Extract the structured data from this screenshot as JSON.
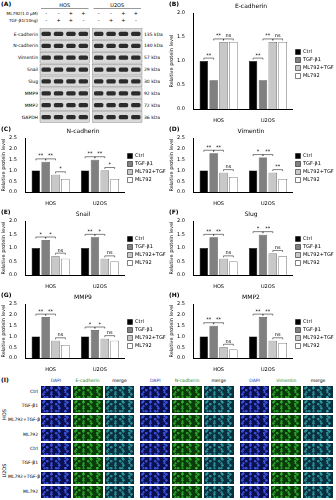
{
  "panel_a": {
    "panel_label": "(A)",
    "cell_lines": [
      "HOS",
      "U2OS"
    ],
    "treatments": [
      {
        "name": "ML792(1.0 μM)",
        "signs": [
          "-",
          "-",
          "+",
          "+",
          "-",
          "-",
          "+",
          "+"
        ]
      },
      {
        "name": "TGF-β1(10ng)",
        "signs": [
          "-",
          "+",
          "+",
          "-",
          "-",
          "+",
          "+",
          "-"
        ]
      }
    ],
    "proteins": [
      {
        "name": "E-cadherin",
        "size": "135 kDa"
      },
      {
        "name": "N-cadherin",
        "size": "140 kDa"
      },
      {
        "name": "Vimentin",
        "size": "57 kDa"
      },
      {
        "name": "Snail",
        "size": "29 kDa"
      },
      {
        "name": "Slug",
        "size": "30 kDa"
      },
      {
        "name": "MMP9",
        "size": "92 kDa"
      },
      {
        "name": "MMP2",
        "size": "72 kDa"
      },
      {
        "name": "GAPDH",
        "size": "36 kDa"
      }
    ]
  },
  "chart_data": [
    {
      "type": "bar",
      "panel_label": "(B)",
      "title": "E-cadherin",
      "y_label": "Relative protein level",
      "categories": [
        "HOS",
        "U2OS"
      ],
      "series": [
        {
          "name": "Ctrl",
          "color": "#000000",
          "values": [
            1.0,
            1.0
          ]
        },
        {
          "name": "TGF-β1",
          "color": "#808080",
          "values": [
            0.6,
            0.6
          ]
        },
        {
          "name": "ML792+TGF-β1",
          "color": "#c8c8c8",
          "values": [
            1.4,
            1.4
          ]
        },
        {
          "name": "ML792",
          "color": "#ffffff",
          "values": [
            1.4,
            1.4
          ]
        }
      ],
      "ylim": [
        0,
        2
      ],
      "yticks": [
        {
          "value": 0,
          "label": "0.0"
        },
        0.5,
        {
          "value": 1,
          "label": "1.0"
        },
        1.5,
        {
          "value": 2,
          "label": "2.0"
        }
      ],
      "grid": false,
      "legend": "right",
      "annotations": [
        {
          "text": "**",
          "group": "HOS",
          "between": [
            "Ctrl",
            "TGF-β1"
          ]
        },
        {
          "text": "**",
          "group": "HOS",
          "between": [
            "TGF-β1",
            "ML792+TGF-β1"
          ]
        },
        {
          "text": "ns",
          "group": "HOS",
          "between": [
            "ML792+TGF-β1",
            "ML792"
          ]
        },
        {
          "text": "**",
          "group": "U2OS",
          "between": [
            "Ctrl",
            "TGF-β1"
          ]
        },
        {
          "text": "**",
          "group": "U2OS",
          "between": [
            "TGF-β1",
            "ML792+TGF-β1"
          ]
        },
        {
          "text": "ns",
          "group": "U2OS",
          "between": [
            "ML792+TGF-β1",
            "ML792"
          ]
        }
      ]
    },
    {
      "type": "bar",
      "panel_label": "(C)",
      "title": "N-cadherin",
      "y_label": "Relative protein level",
      "categories": [
        "HOS",
        "U2OS"
      ],
      "series": [
        {
          "name": "Ctrl",
          "color": "#000000",
          "values": [
            1.0,
            1.0
          ]
        },
        {
          "name": "TGF-β1",
          "color": "#808080",
          "values": [
            1.4,
            1.5
          ]
        },
        {
          "name": "ML792+TGF-β1",
          "color": "#c8c8c8",
          "values": [
            0.8,
            1.0
          ]
        },
        {
          "name": "ML792",
          "color": "#ffffff",
          "values": [
            0.6,
            0.6
          ]
        }
      ],
      "ylim": [
        0,
        2.5
      ],
      "yticks": [
        {
          "value": 0,
          "label": "0.0"
        },
        0.5,
        {
          "value": 1,
          "label": "1.0"
        },
        1.5,
        {
          "value": 2,
          "label": "2.0"
        },
        2.5
      ],
      "grid": false,
      "legend": "right",
      "annotations": [
        {
          "text": "**",
          "group": "HOS",
          "between": [
            "Ctrl",
            "TGF-β1"
          ]
        },
        {
          "text": "**",
          "group": "HOS",
          "between": [
            "TGF-β1",
            "ML792+TGF-β1"
          ]
        },
        {
          "text": "*",
          "group": "HOS",
          "between": [
            "ML792+TGF-β1",
            "ML792"
          ]
        },
        {
          "text": "**",
          "group": "U2OS",
          "between": [
            "Ctrl",
            "TGF-β1"
          ]
        },
        {
          "text": "**",
          "group": "U2OS",
          "between": [
            "TGF-β1",
            "ML792+TGF-β1"
          ]
        },
        {
          "text": "*",
          "group": "U2OS",
          "between": [
            "ML792+TGF-β1",
            "ML792"
          ]
        }
      ]
    },
    {
      "type": "bar",
      "panel_label": "(D)",
      "title": "Vimentin",
      "y_label": "Relative protein level",
      "categories": [
        "HOS",
        "U2OS"
      ],
      "series": [
        {
          "name": "Ctrl",
          "color": "#000000",
          "values": [
            1.0,
            1.0
          ]
        },
        {
          "name": "TGF-β1",
          "color": "#808080",
          "values": [
            1.8,
            1.6
          ]
        },
        {
          "name": "ML792+TGF-β1",
          "color": "#c8c8c8",
          "values": [
            0.9,
            0.9
          ]
        },
        {
          "name": "ML792",
          "color": "#ffffff",
          "values": [
            0.7,
            0.6
          ]
        }
      ],
      "ylim": [
        0,
        2.5
      ],
      "yticks": [
        {
          "value": 0,
          "label": "0.0"
        },
        0.5,
        {
          "value": 1,
          "label": "1.0"
        },
        1.5,
        {
          "value": 2,
          "label": "2.0"
        },
        2.5
      ],
      "grid": false,
      "legend": "right",
      "annotations": [
        {
          "text": "**",
          "group": "HOS",
          "between": [
            "Ctrl",
            "TGF-β1"
          ]
        },
        {
          "text": "**",
          "group": "HOS",
          "between": [
            "TGF-β1",
            "ML792+TGF-β1"
          ]
        },
        {
          "text": "ns",
          "group": "HOS",
          "between": [
            "ML792+TGF-β1",
            "ML792"
          ]
        },
        {
          "text": "*",
          "group": "U2OS",
          "between": [
            "Ctrl",
            "TGF-β1"
          ]
        },
        {
          "text": "**",
          "group": "U2OS",
          "between": [
            "TGF-β1",
            "ML792+TGF-β1"
          ]
        },
        {
          "text": "**",
          "group": "U2OS",
          "between": [
            "ML792+TGF-β1",
            "ML792"
          ]
        }
      ]
    },
    {
      "type": "bar",
      "panel_label": "(E)",
      "title": "Snail",
      "y_label": "Relative protein level",
      "categories": [
        "HOS",
        "U2OS"
      ],
      "series": [
        {
          "name": "Ctrl",
          "color": "#000000",
          "values": [
            1.0,
            1.0
          ]
        },
        {
          "name": "TGF-β1",
          "color": "#808080",
          "values": [
            1.3,
            1.4
          ]
        },
        {
          "name": "ML792+TGF-β1",
          "color": "#c8c8c8",
          "values": [
            0.7,
            0.6
          ]
        },
        {
          "name": "ML792",
          "color": "#ffffff",
          "values": [
            0.6,
            0.5
          ]
        }
      ],
      "ylim": [
        0,
        2
      ],
      "yticks": [
        {
          "value": 0,
          "label": "0.0"
        },
        0.5,
        {
          "value": 1,
          "label": "1.0"
        },
        1.5,
        {
          "value": 2,
          "label": "2.0"
        }
      ],
      "grid": false,
      "legend": "right",
      "annotations": [
        {
          "text": "*",
          "group": "HOS",
          "between": [
            "Ctrl",
            "TGF-β1"
          ]
        },
        {
          "text": "*",
          "group": "HOS",
          "between": [
            "TGF-β1",
            "ML792+TGF-β1"
          ]
        },
        {
          "text": "ns",
          "group": "HOS",
          "between": [
            "ML792+TGF-β1",
            "ML792"
          ]
        },
        {
          "text": "**",
          "group": "U2OS",
          "between": [
            "Ctrl",
            "TGF-β1"
          ]
        },
        {
          "text": "*",
          "group": "U2OS",
          "between": [
            "TGF-β1",
            "ML792+TGF-β1"
          ]
        },
        {
          "text": "ns",
          "group": "U2OS",
          "between": [
            "ML792+TGF-β1",
            "ML792"
          ]
        }
      ]
    },
    {
      "type": "bar",
      "panel_label": "(F)",
      "title": "Slug",
      "y_label": "Relative protein level",
      "categories": [
        "HOS",
        "U2OS"
      ],
      "series": [
        {
          "name": "Ctrl",
          "color": "#000000",
          "values": [
            1.0,
            1.0
          ]
        },
        {
          "name": "TGF-β1",
          "color": "#808080",
          "values": [
            1.4,
            1.5
          ]
        },
        {
          "name": "ML792+TGF-β1",
          "color": "#c8c8c8",
          "values": [
            0.6,
            0.8
          ]
        },
        {
          "name": "ML792",
          "color": "#ffffff",
          "values": [
            0.5,
            0.7
          ]
        }
      ],
      "ylim": [
        0,
        2
      ],
      "yticks": [
        {
          "value": 0,
          "label": "0.0"
        },
        0.5,
        {
          "value": 1,
          "label": "1.0"
        },
        1.5,
        {
          "value": 2,
          "label": "2.0"
        }
      ],
      "grid": false,
      "legend": "right",
      "annotations": [
        {
          "text": "**",
          "group": "HOS",
          "between": [
            "Ctrl",
            "TGF-β1"
          ]
        },
        {
          "text": "**",
          "group": "HOS",
          "between": [
            "TGF-β1",
            "ML792+TGF-β1"
          ]
        },
        {
          "text": "ns",
          "group": "HOS",
          "between": [
            "ML792+TGF-β1",
            "ML792"
          ]
        },
        {
          "text": "*",
          "group": "U2OS",
          "between": [
            "Ctrl",
            "TGF-β1"
          ]
        },
        {
          "text": "**",
          "group": "U2OS",
          "between": [
            "TGF-β1",
            "ML792+TGF-β1"
          ]
        },
        {
          "text": "ns",
          "group": "U2OS",
          "between": [
            "ML792+TGF-β1",
            "ML792"
          ]
        }
      ]
    },
    {
      "type": "bar",
      "panel_label": "(G)",
      "title": "MMP9",
      "y_label": "Relative protein level",
      "categories": [
        "HOS",
        "U2OS"
      ],
      "series": [
        {
          "name": "Ctrl",
          "color": "#000000",
          "values": [
            1.0,
            1.0
          ]
        },
        {
          "name": "TGF-β1",
          "color": "#808080",
          "values": [
            1.9,
            1.3
          ]
        },
        {
          "name": "ML792+TGF-β1",
          "color": "#c8c8c8",
          "values": [
            0.8,
            0.9
          ]
        },
        {
          "name": "ML792",
          "color": "#ffffff",
          "values": [
            0.6,
            0.8
          ]
        }
      ],
      "ylim": [
        0,
        2.5
      ],
      "yticks": [
        {
          "value": 0,
          "label": "0.0"
        },
        0.5,
        {
          "value": 1,
          "label": "1.0"
        },
        1.5,
        {
          "value": 2,
          "label": "2.0"
        },
        2.5
      ],
      "grid": false,
      "legend": "right",
      "annotations": [
        {
          "text": "**",
          "group": "HOS",
          "between": [
            "Ctrl",
            "TGF-β1"
          ]
        },
        {
          "text": "**",
          "group": "HOS",
          "between": [
            "TGF-β1",
            "ML792+TGF-β1"
          ]
        },
        {
          "text": "ns",
          "group": "HOS",
          "between": [
            "ML792+TGF-β1",
            "ML792"
          ]
        },
        {
          "text": "*",
          "group": "U2OS",
          "between": [
            "Ctrl",
            "TGF-β1"
          ]
        },
        {
          "text": "*",
          "group": "U2OS",
          "between": [
            "TGF-β1",
            "ML792+TGF-β1"
          ]
        },
        {
          "text": "ns",
          "group": "U2OS",
          "between": [
            "ML792+TGF-β1",
            "ML792"
          ]
        }
      ]
    },
    {
      "type": "bar",
      "panel_label": "(H)",
      "title": "MMP2",
      "y_label": "Relative protein level",
      "categories": [
        "HOS",
        "U2OS"
      ],
      "series": [
        {
          "name": "Ctrl",
          "color": "#000000",
          "values": [
            1.0,
            1.0
          ]
        },
        {
          "name": "TGF-β1",
          "color": "#808080",
          "values": [
            1.5,
            1.9
          ]
        },
        {
          "name": "ML792+TGF-β1",
          "color": "#c8c8c8",
          "values": [
            0.5,
            0.8
          ]
        },
        {
          "name": "ML792",
          "color": "#ffffff",
          "values": [
            0.4,
            0.7
          ]
        }
      ],
      "ylim": [
        0,
        2.5
      ],
      "yticks": [
        {
          "value": 0,
          "label": "0.0"
        },
        0.5,
        {
          "value": 1,
          "label": "1.0"
        },
        1.5,
        {
          "value": 2,
          "label": "2.0"
        },
        2.5
      ],
      "grid": false,
      "legend": "right",
      "annotations": [
        {
          "text": "**",
          "group": "HOS",
          "between": [
            "Ctrl",
            "TGF-β1"
          ]
        },
        {
          "text": "**",
          "group": "HOS",
          "between": [
            "TGF-β1",
            "ML792+TGF-β1"
          ]
        },
        {
          "text": "ns",
          "group": "HOS",
          "between": [
            "ML792+TGF-β1",
            "ML792"
          ]
        },
        {
          "text": "**",
          "group": "U2OS",
          "between": [
            "Ctrl",
            "TGF-β1"
          ]
        },
        {
          "text": "**",
          "group": "U2OS",
          "between": [
            "TGF-β1",
            "ML792+TGF-β1"
          ]
        },
        {
          "text": "ns",
          "group": "U2OS",
          "between": [
            "ML792+TGF-β1",
            "ML792"
          ]
        }
      ]
    }
  ],
  "panel_i": {
    "panel_label": "(I)",
    "cell_lines": [
      "HOS",
      "U2OS"
    ],
    "rows": [
      "Ctrl",
      "TGF-β1",
      "ML792+TGF-β1",
      "ML792"
    ],
    "groups": [
      [
        "DAPI",
        "E-cadherin",
        "merge"
      ],
      [
        "DAPI",
        "N-cadherin",
        "merge"
      ],
      [
        "DAPI",
        "Vimentin",
        "merge"
      ]
    ]
  }
}
